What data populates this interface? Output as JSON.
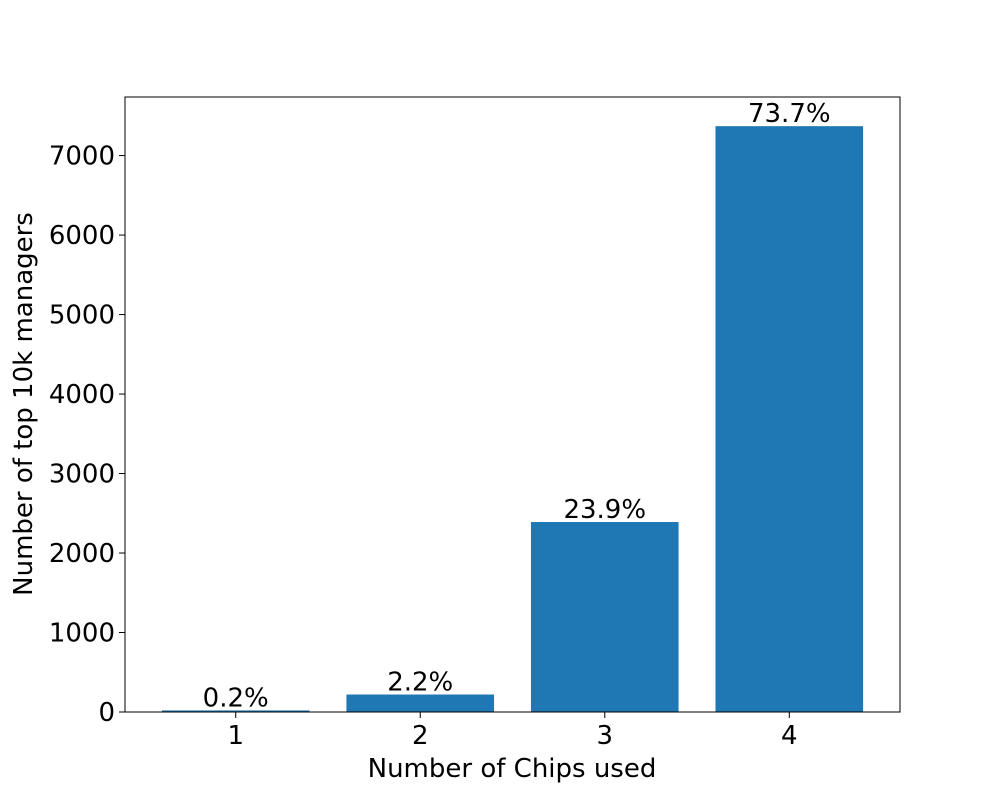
{
  "chart_data": {
    "type": "bar",
    "title": "",
    "xlabel": "Number of Chips used",
    "ylabel": "Number of top 10k managers",
    "categories": [
      "1",
      "2",
      "3",
      "4"
    ],
    "values": [
      20,
      220,
      2390,
      7370
    ],
    "data_labels": [
      "0.2%",
      "2.2%",
      "23.9%",
      "73.7%"
    ],
    "ylim": [
      0,
      7737
    ],
    "yticks": [
      0,
      1000,
      2000,
      3000,
      4000,
      5000,
      6000,
      7000
    ],
    "ytick_labels": [
      "0",
      "1000",
      "2000",
      "3000",
      "4000",
      "5000",
      "6000",
      "7000"
    ],
    "grid": false,
    "legend": "none",
    "bar_color": "#1f77b4"
  }
}
